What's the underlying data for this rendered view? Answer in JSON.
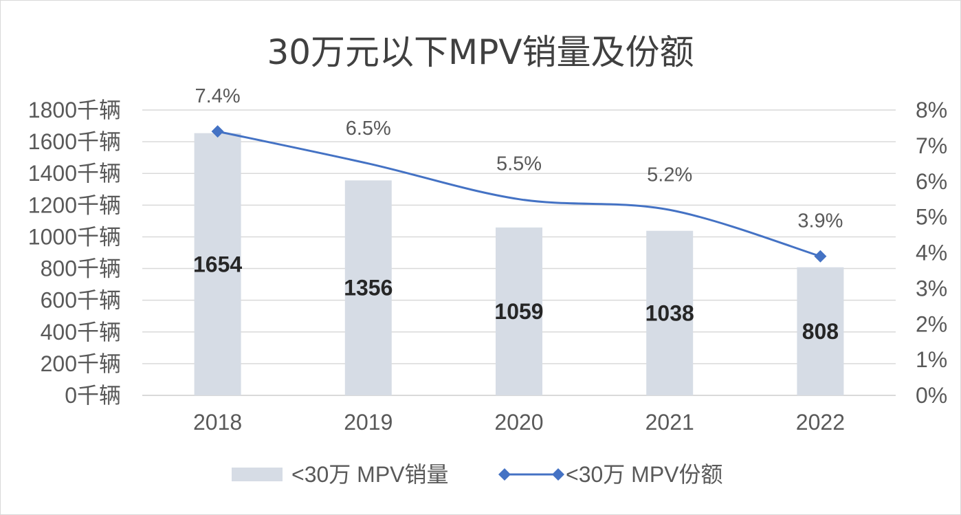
{
  "chart_data": {
    "type": "bar",
    "title": "30万元以下MPV销量及份额",
    "categories": [
      "2018",
      "2019",
      "2020",
      "2021",
      "2022"
    ],
    "series": [
      {
        "name": "<30万 MPV销量",
        "type": "bar",
        "axis": "left",
        "values": [
          1654,
          1356,
          1059,
          1038,
          808
        ],
        "data_labels": [
          "1654",
          "1356",
          "1059",
          "1038",
          "808"
        ],
        "color": "#d6dce5"
      },
      {
        "name": "<30万 MPV份额",
        "type": "line",
        "axis": "right",
        "values": [
          7.4,
          6.5,
          5.5,
          5.2,
          3.9
        ],
        "data_labels": [
          "7.4%",
          "6.5%",
          "5.5%",
          "5.2%",
          "3.9%"
        ],
        "color": "#4472c4",
        "marker": "diamond",
        "smooth": true
      }
    ],
    "y_left": {
      "ylim": [
        0,
        1800
      ],
      "ticks": [
        0,
        200,
        400,
        600,
        800,
        1000,
        1200,
        1400,
        1600,
        1800
      ],
      "tick_labels": [
        "0千辆",
        "200千辆",
        "400千辆",
        "600千辆",
        "800千辆",
        "1000千辆",
        "1200千辆",
        "1400千辆",
        "1600千辆",
        "1800千辆"
      ]
    },
    "y_right": {
      "ylim": [
        0,
        8
      ],
      "ticks": [
        0,
        1,
        2,
        3,
        4,
        5,
        6,
        7,
        8
      ],
      "tick_labels": [
        "0%",
        "1%",
        "2%",
        "3%",
        "4%",
        "5%",
        "6%",
        "7%",
        "8%"
      ]
    },
    "grid": true,
    "legend_position": "bottom",
    "colors": {
      "grid": "#d9d9d9",
      "bar": "#d6dce5",
      "line": "#4472c4",
      "title": "#404040",
      "axis_text": "#595959"
    }
  }
}
